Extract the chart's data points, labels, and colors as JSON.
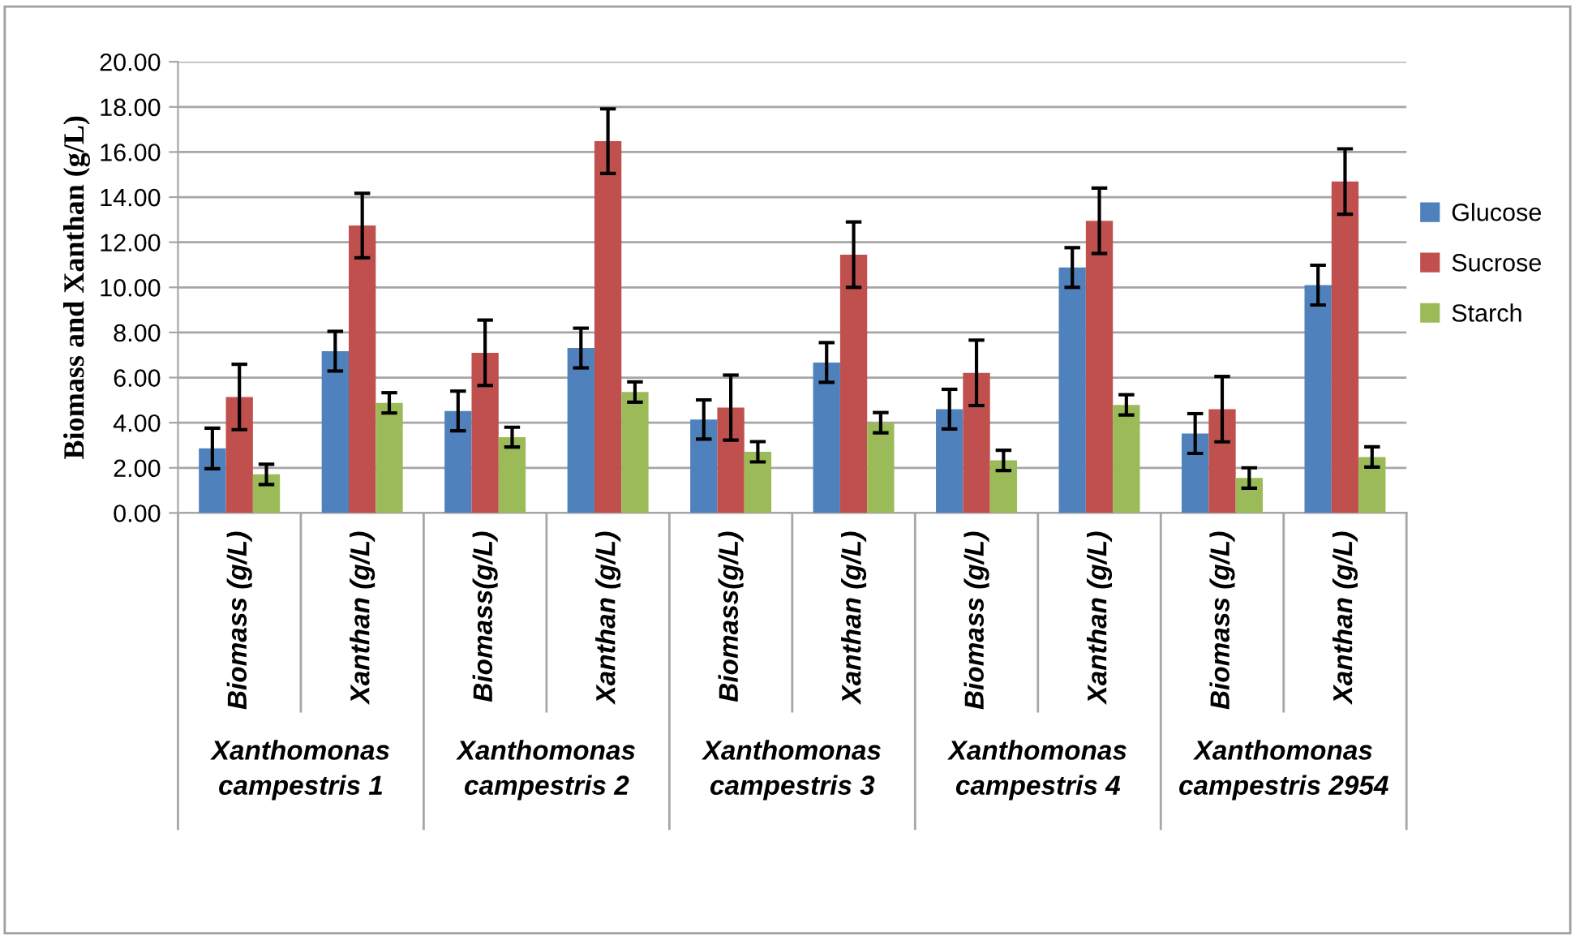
{
  "chart_data": {
    "type": "bar",
    "ylabel": "Biomass and Xanthan (g/L)",
    "categories": [
      "Biomass (g/L)",
      "Xanthan (g/L)",
      "Biomass(g/L)",
      "Xanthan (g/L)",
      "Biomass(g/L)",
      "Xanthan (g/L)",
      "Biomass (g/L)",
      "Xanthan (g/L)",
      "Biomass (g/L)",
      "Xanthan (g/L)"
    ],
    "series": [
      {
        "name": "Glucose",
        "color": "#4f81bd",
        "values": [
          2.86,
          7.17,
          4.52,
          7.31,
          4.14,
          6.67,
          4.6,
          10.88,
          3.52,
          10.1
        ],
        "errors": [
          0.9,
          0.88,
          0.88,
          0.88,
          0.87,
          0.88,
          0.88,
          0.88,
          0.88,
          0.88
        ]
      },
      {
        "name": "Sucrose",
        "color": "#c0504d",
        "values": [
          5.14,
          12.74,
          7.1,
          16.48,
          4.67,
          11.45,
          6.21,
          12.95,
          4.6,
          14.69
        ],
        "errors": [
          1.45,
          1.43,
          1.45,
          1.43,
          1.44,
          1.45,
          1.45,
          1.45,
          1.45,
          1.45
        ]
      },
      {
        "name": "Starch",
        "color": "#9bbb59",
        "values": [
          1.71,
          4.88,
          3.36,
          5.36,
          2.71,
          4.0,
          2.33,
          4.79,
          1.55,
          2.48
        ],
        "errors": [
          0.45,
          0.45,
          0.44,
          0.45,
          0.45,
          0.45,
          0.45,
          0.45,
          0.45,
          0.45
        ]
      }
    ],
    "annotations": [
      "Xanthomonas\ncampestris 1",
      "Xanthomonas\ncampestris 2",
      "Xanthomonas\ncampestris 3",
      "Xanthomonas\ncampestris 4",
      "Xanthomonas\ncampestris 2954"
    ],
    "ylim": [
      0,
      20
    ],
    "yticks": [
      {
        "value": 0,
        "label": "0.00"
      },
      {
        "value": 2,
        "label": "2.00"
      },
      {
        "value": 4,
        "label": "4.00"
      },
      {
        "value": 6,
        "label": "6.00"
      },
      {
        "value": 8,
        "label": "8.00"
      },
      {
        "value": 10,
        "label": "10.00"
      },
      {
        "value": 12,
        "label": "12.00"
      },
      {
        "value": 14,
        "label": "14.00"
      },
      {
        "value": 16,
        "label": "16.00"
      },
      {
        "value": 18,
        "label": "18.00"
      },
      {
        "value": 20,
        "label": "20.00"
      }
    ],
    "grid": "y",
    "legend": "right"
  }
}
